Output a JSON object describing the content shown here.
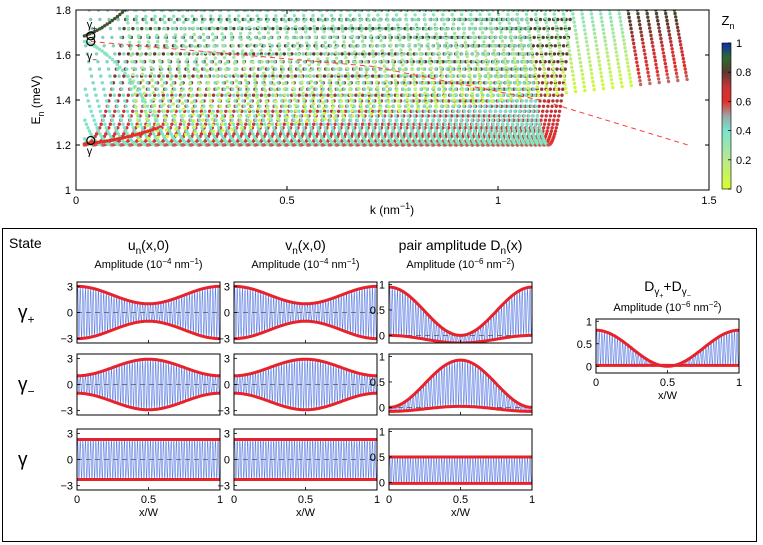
{
  "chart_data": {
    "top_plot": {
      "type": "scatter",
      "xlabel": "k (nm",
      "xlabel_sup": "−1",
      "xlabel_end": ")",
      "ylabel": "E",
      "ylabel_sub": "n",
      "ylabel_unit": " (meV)",
      "xlim": [
        0,
        1.5
      ],
      "ylim": [
        1.0,
        1.8
      ],
      "xticks": [
        "0",
        "0.5",
        "1",
        "1.5"
      ],
      "yticks": [
        "1",
        "1.2",
        "1.4",
        "1.6",
        "1.8"
      ],
      "state_labels": [
        {
          "main": "γ",
          "sub": "+",
          "k": 0.035,
          "E": 1.685
        },
        {
          "main": "γ",
          "sub": "−",
          "k": 0.035,
          "E": 1.66
        },
        {
          "main": "γ",
          "sub": "",
          "k": 0.035,
          "E": 1.22
        }
      ],
      "dashed_line": [
        [
          0.035,
          1.66
        ],
        [
          0.7,
          1.55
        ],
        [
          1.1,
          1.4
        ],
        [
          1.45,
          1.2
        ]
      ],
      "colorbar": {
        "label": "Z",
        "label_sub": "n",
        "ticks": [
          "0",
          "0.2",
          "0.4",
          "0.6",
          "0.8",
          "1"
        ],
        "range": [
          0,
          1
        ]
      }
    },
    "panel": {
      "state_header": "State",
      "rows": [
        {
          "label": "γ",
          "sub": "+"
        },
        {
          "label": "γ",
          "sub": "−"
        },
        {
          "label": "γ",
          "sub": ""
        }
      ],
      "columns": [
        {
          "title": "u",
          "title_sub": "n",
          "title_end": "(x,0)",
          "amp": "Amplitude (10",
          "amp_sup": "−4",
          "amp_mid": " nm",
          "amp_sup2": "−1",
          "amp_end": ")",
          "yticks": [
            "3",
            "0",
            "−3"
          ],
          "ylim": [
            -3.5,
            3.5
          ]
        },
        {
          "title": "v",
          "title_sub": "n",
          "title_end": "(x,0)",
          "amp": "Amplitude (10",
          "amp_sup": "−4",
          "amp_mid": " nm",
          "amp_sup2": "−1",
          "amp_end": ")",
          "yticks": [
            "3",
            "0",
            "−3"
          ],
          "ylim": [
            -3.5,
            3.5
          ]
        },
        {
          "title": "pair amplitude D",
          "title_sub": "n",
          "title_end": "(x)",
          "amp": "Amplitude (10",
          "amp_sup": "−6",
          "amp_mid": " nm",
          "amp_sup2": "−2",
          "amp_end": ")",
          "yticks_rows": [
            [
              "1",
              "0.5",
              "0"
            ],
            [
              "1",
              "0.5",
              "0"
            ],
            [
              "1",
              "0.5",
              "0"
            ]
          ],
          "ylim": [
            -0.15,
            1.05
          ]
        }
      ],
      "extra": {
        "title": "D",
        "title_sub1": "γ",
        "title_sub1b": "+",
        "title_mid": "+D",
        "title_sub2": "γ",
        "title_sub2b": "−",
        "amp": "Amplitude (10",
        "amp_sup": "−6",
        "amp_mid": " nm",
        "amp_sup2": "−2",
        "amp_end": ")",
        "yticks": [
          "1",
          "0.5",
          "0"
        ],
        "ylim": [
          -0.15,
          1.05
        ]
      },
      "xticks": [
        "0",
        "0.5",
        "1"
      ],
      "xlabel": "x/W"
    }
  }
}
